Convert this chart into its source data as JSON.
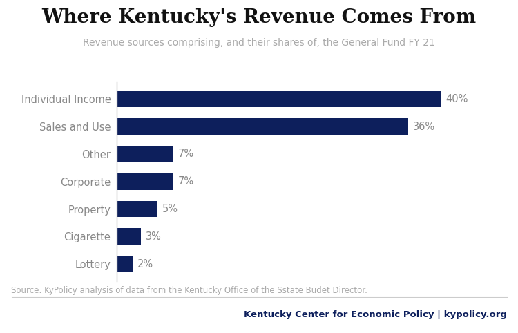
{
  "title": "Where Kentucky's Revenue Comes From",
  "subtitle": "Revenue sources comprising, and their shares of, the General Fund FY 21",
  "categories": [
    "Individual Income",
    "Sales and Use",
    "Other",
    "Corporate",
    "Property",
    "Cigarette",
    "Lottery"
  ],
  "values": [
    40,
    36,
    7,
    7,
    5,
    3,
    2
  ],
  "bar_color": "#0d1f5c",
  "label_color": "#888888",
  "value_label_color": "#888888",
  "background_color": "#ffffff",
  "source_text": "Source: KyPolicy analysis of data from the Kentucky Office of the Sstate Budet Director.",
  "footer_left": "Kentucky Center for Economic Policy",
  "footer_sep": " | ",
  "footer_right": "kypolicy.org",
  "footer_color": "#0d1f5c",
  "title_fontsize": 20,
  "subtitle_fontsize": 10,
  "bar_label_fontsize": 10.5,
  "value_label_fontsize": 10.5,
  "source_fontsize": 8.5,
  "footer_fontsize": 9.5,
  "xlim": [
    0,
    46
  ]
}
